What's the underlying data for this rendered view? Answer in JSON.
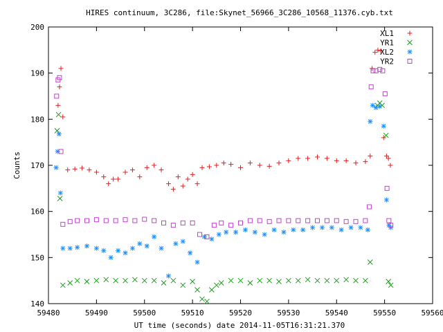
{
  "chart_data": {
    "type": "scatter",
    "title": "HIRES continuum, 3C286, file:Skynet_56966_3C286_10568_11376.cyb.txt",
    "xlabel": "UT time (seconds) date 2014-11-05T16:31:21.370",
    "ylabel": "Counts",
    "xlim": [
      59480,
      59560
    ],
    "ylim": [
      140,
      200
    ],
    "xticks": [
      59480,
      59490,
      59500,
      59510,
      59520,
      59530,
      59540,
      59550,
      59560
    ],
    "yticks": [
      140,
      150,
      160,
      170,
      180,
      190,
      200
    ],
    "grid": false,
    "legend_position": "top-right",
    "series": [
      {
        "name": "XL1",
        "marker": "plus",
        "color": "#e41a1c",
        "x": [
          59482.0,
          59482.3,
          59482.6,
          59483.0,
          59484.0,
          59485.5,
          59487.0,
          59488.5,
          59490.0,
          59491.5,
          59492.5,
          59493.5,
          59494.5,
          59496.0,
          59497.5,
          59499.0,
          59500.5,
          59502.0,
          59503.5,
          59505.0,
          59506.0,
          59507.0,
          59508.0,
          59509.0,
          59510.0,
          59511.0,
          59512.0,
          59513.5,
          59515.0,
          59516.5,
          59518.0,
          59520.0,
          59522.0,
          59524.0,
          59526.0,
          59528.0,
          59530.0,
          59532.0,
          59534.0,
          59536.0,
          59538.0,
          59540.0,
          59542.0,
          59544.0,
          59546.0,
          59547.0,
          59547.4,
          59548.0,
          59548.6,
          59549.2,
          59549.8,
          59550.4,
          59550.8,
          59551.2
        ],
        "y": [
          183.0,
          187.0,
          191.0,
          180.5,
          169.0,
          169.2,
          169.4,
          169.0,
          168.5,
          167.5,
          166.0,
          167.0,
          167.0,
          168.5,
          169.0,
          167.5,
          169.5,
          170.0,
          169.0,
          166.0,
          164.8,
          167.5,
          165.5,
          167.0,
          168.0,
          166.0,
          169.5,
          169.7,
          170.0,
          170.5,
          170.2,
          169.5,
          170.5,
          170.0,
          169.8,
          170.5,
          171.0,
          171.5,
          171.5,
          171.8,
          171.5,
          171.0,
          171.0,
          170.5,
          170.8,
          172.0,
          191.0,
          194.5,
          195.0,
          194.8,
          176.0,
          172.0,
          171.5,
          170.0
        ]
      },
      {
        "name": "YR1",
        "marker": "cross",
        "color": "#1a9a1a",
        "x": [
          59481.8,
          59482.1,
          59482.4,
          59483.0,
          59484.5,
          59486.0,
          59488.0,
          59490.0,
          59492.0,
          59494.0,
          59496.0,
          59498.0,
          59500.0,
          59502.0,
          59504.0,
          59506.0,
          59508.0,
          59510.0,
          59511.0,
          59512.0,
          59513.0,
          59514.0,
          59515.0,
          59516.0,
          59518.0,
          59520.0,
          59522.0,
          59524.0,
          59526.0,
          59528.0,
          59530.0,
          59532.0,
          59534.0,
          59536.0,
          59538.0,
          59540.0,
          59542.0,
          59544.0,
          59546.0,
          59547.0,
          59548.5,
          59549.0,
          59549.5,
          59550.3,
          59550.8,
          59551.3
        ],
        "y": [
          177.5,
          181.0,
          162.8,
          144.0,
          144.5,
          145.0,
          144.8,
          145.0,
          145.2,
          145.0,
          145.0,
          145.2,
          145.0,
          145.0,
          144.5,
          145.0,
          144.0,
          144.8,
          143.0,
          141.0,
          140.5,
          143.0,
          144.0,
          144.5,
          145.0,
          145.0,
          144.5,
          145.0,
          145.0,
          144.8,
          145.0,
          145.0,
          145.2,
          145.0,
          145.0,
          145.0,
          145.2,
          145.0,
          145.0,
          149.0,
          183.0,
          183.5,
          183.0,
          176.5,
          144.8,
          144.0
        ]
      },
      {
        "name": "XL2",
        "marker": "star",
        "color": "#1e90ff",
        "x": [
          59481.6,
          59481.9,
          59482.2,
          59482.5,
          59483.0,
          59484.5,
          59486.0,
          59488.0,
          59490.0,
          59491.5,
          59493.0,
          59494.5,
          59496.0,
          59497.5,
          59499.0,
          59500.5,
          59502.0,
          59503.5,
          59505.0,
          59506.5,
          59508.0,
          59509.5,
          59511.0,
          59512.5,
          59514.0,
          59515.5,
          59517.0,
          59519.0,
          59521.0,
          59523.0,
          59525.0,
          59527.0,
          59529.0,
          59531.0,
          59533.0,
          59535.0,
          59537.0,
          59539.0,
          59541.0,
          59543.0,
          59545.0,
          59546.5,
          59547.0,
          59547.5,
          59548.2,
          59549.0,
          59549.8,
          59550.4,
          59550.9,
          59551.3
        ],
        "y": [
          169.5,
          173.0,
          176.8,
          164.0,
          152.0,
          152.0,
          152.2,
          152.5,
          152.0,
          151.5,
          150.0,
          151.5,
          151.0,
          152.0,
          153.0,
          152.5,
          154.5,
          152.0,
          146.0,
          153.0,
          153.5,
          151.0,
          149.0,
          154.5,
          154.0,
          155.0,
          155.5,
          155.5,
          156.0,
          155.5,
          155.0,
          156.0,
          155.5,
          156.0,
          156.0,
          156.5,
          156.5,
          156.5,
          156.0,
          156.5,
          156.5,
          156.0,
          179.5,
          183.0,
          182.5,
          182.8,
          178.5,
          162.5,
          157.0,
          156.5
        ]
      },
      {
        "name": "YR2",
        "marker": "square",
        "color": "#c040d0",
        "x": [
          59481.7,
          59482.0,
          59482.3,
          59482.6,
          59483.0,
          59484.5,
          59486.0,
          59488.0,
          59490.0,
          59492.0,
          59494.0,
          59496.0,
          59498.0,
          59500.0,
          59502.0,
          59504.0,
          59506.0,
          59508.0,
          59510.0,
          59511.5,
          59513.0,
          59514.5,
          59516.0,
          59518.0,
          59520.0,
          59522.0,
          59524.0,
          59526.0,
          59528.0,
          59530.0,
          59532.0,
          59534.0,
          59536.0,
          59538.0,
          59540.0,
          59542.0,
          59544.0,
          59546.0,
          59546.8,
          59547.2,
          59547.6,
          59548.2,
          59549.0,
          59549.6,
          59550.1,
          59550.5,
          59550.9,
          59551.3
        ],
        "y": [
          185.0,
          188.5,
          189.0,
          173.0,
          157.2,
          157.8,
          158.0,
          158.0,
          158.2,
          158.0,
          158.0,
          158.2,
          158.0,
          158.3,
          158.0,
          157.5,
          157.0,
          157.5,
          157.5,
          155.0,
          154.5,
          157.0,
          157.5,
          157.0,
          157.5,
          158.0,
          158.0,
          157.8,
          158.0,
          158.0,
          158.0,
          158.0,
          158.0,
          158.0,
          158.0,
          157.8,
          157.8,
          158.0,
          161.0,
          187.0,
          190.5,
          190.5,
          190.8,
          190.5,
          185.5,
          165.0,
          158.0,
          157.0
        ]
      }
    ]
  }
}
